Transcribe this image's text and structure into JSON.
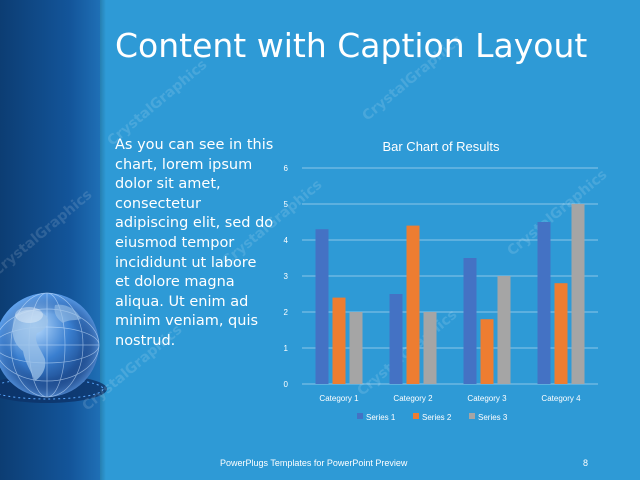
{
  "slide": {
    "title": "Content with Caption Layout",
    "caption": "As you can see in this chart, lorem ipsum dolor sit amet, consectetur adipiscing elit, sed do eiusmod tempor incididunt ut labore et dolore magna aliqua. Ut enim ad minim veniam, quis nostrud.",
    "footer": "PowerPlugs Templates for PowerPoint Preview",
    "page_number": "8",
    "watermark": "CrystalGraphics"
  },
  "colors": {
    "background": "#2e9ad6",
    "band": "#13559a",
    "series_1": "#4472c4",
    "series_2": "#ed7d31",
    "series_3": "#a5a5a5"
  },
  "chart_data": {
    "type": "bar",
    "title": "Bar Chart of Results",
    "categories": [
      "Category 1",
      "Category 2",
      "Category 3",
      "Category 4"
    ],
    "series": [
      {
        "name": "Series 1",
        "values": [
          4.3,
          2.5,
          3.5,
          4.5
        ]
      },
      {
        "name": "Series 2",
        "values": [
          2.4,
          4.4,
          1.8,
          2.8
        ]
      },
      {
        "name": "Series 3",
        "values": [
          2,
          2,
          3,
          5
        ]
      }
    ],
    "ylim": [
      0,
      6
    ],
    "yticks": [
      "0",
      "1",
      "2",
      "3",
      "4",
      "5",
      "6"
    ],
    "grid": true,
    "legend": "bottom"
  }
}
